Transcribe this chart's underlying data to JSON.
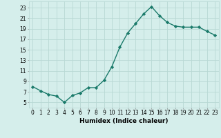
{
  "x": [
    0,
    1,
    2,
    3,
    4,
    5,
    6,
    7,
    8,
    9,
    10,
    11,
    12,
    13,
    14,
    15,
    16,
    17,
    18,
    19,
    20,
    21,
    22,
    23
  ],
  "y": [
    8.0,
    7.2,
    6.5,
    6.2,
    5.0,
    6.3,
    6.8,
    7.8,
    7.8,
    9.2,
    11.8,
    15.5,
    18.2,
    20.0,
    21.8,
    23.2,
    21.5,
    20.2,
    19.5,
    19.3,
    19.3,
    19.3,
    18.5,
    17.8
  ],
  "line_color": "#1a7a6a",
  "marker": "D",
  "marker_size": 2.2,
  "linewidth": 1.0,
  "bg_color": "#d5eeeb",
  "grid_color": "#b8d8d4",
  "xlabel": "Humidex (Indice chaleur)",
  "xlabel_fontsize": 6.5,
  "yticks": [
    5,
    7,
    9,
    11,
    13,
    15,
    17,
    19,
    21,
    23
  ],
  "xticks": [
    0,
    1,
    2,
    3,
    4,
    5,
    6,
    7,
    8,
    9,
    10,
    11,
    12,
    13,
    14,
    15,
    16,
    17,
    18,
    19,
    20,
    21,
    22,
    23
  ],
  "ylim": [
    4.0,
    24.2
  ],
  "xlim": [
    -0.5,
    23.5
  ],
  "tick_fontsize": 5.5
}
